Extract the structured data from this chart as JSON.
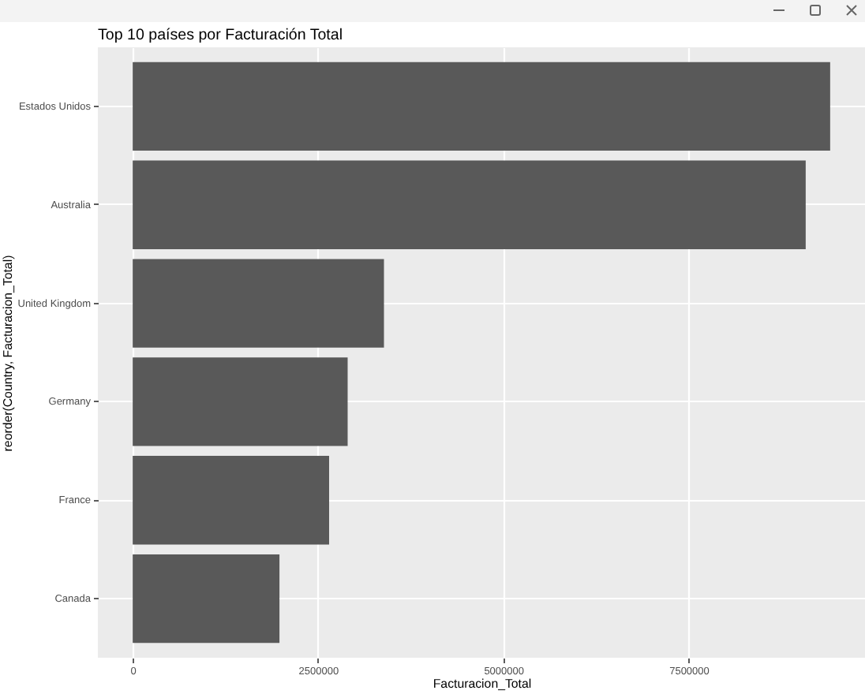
{
  "chart_data": {
    "type": "bar",
    "orientation": "horizontal",
    "title": "Top 10 países por Facturación Total",
    "xlabel": "Facturacion_Total",
    "ylabel": "reorder(Country, Facturacion_Total)",
    "categories": [
      "Estados Unidos",
      "Australia",
      "United Kingdom",
      "Germany",
      "France",
      "Canada"
    ],
    "values": [
      9410000,
      9080000,
      3390000,
      2900000,
      2650000,
      1980000
    ],
    "color": "#595959",
    "xlim": [
      -470000,
      9880000
    ],
    "xticks": [
      0,
      2500000,
      5000000,
      7500000
    ],
    "grid": true
  }
}
